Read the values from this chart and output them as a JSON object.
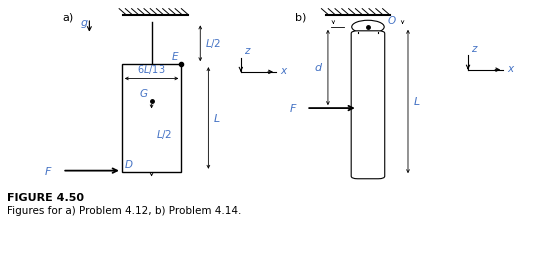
{
  "fig_width": 5.52,
  "fig_height": 2.71,
  "dpi": 100,
  "bg_color": "#ffffff",
  "text_color": "#000000",
  "italic_color": "#4472c4",
  "figure_label": "FIGURE 4.50",
  "caption": "Figures for a) Problem 4.12, b) Problem 4.14.",
  "panel_a_label": "a)",
  "panel_b_label": "b)"
}
